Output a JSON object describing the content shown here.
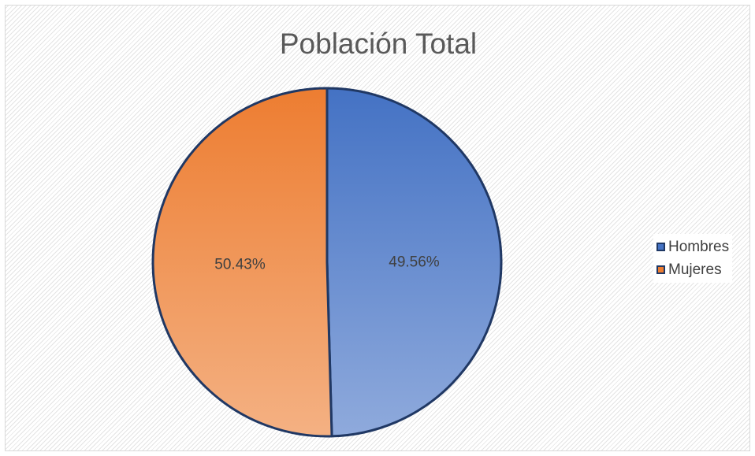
{
  "chart_data": {
    "type": "pie",
    "title": "Población Total",
    "slices": [
      {
        "label": "Hombres",
        "value": 49.56,
        "display": "49.56%",
        "color": "#4472c4",
        "color_light": "#8faadc"
      },
      {
        "label": "Mujeres",
        "value": 50.43,
        "display": "50.43%",
        "color": "#ed7d31",
        "color_light": "#f4b183"
      }
    ],
    "legend_position": "right",
    "start_angle": "12 o'clock, clockwise",
    "slice_border_color": "#203864"
  }
}
